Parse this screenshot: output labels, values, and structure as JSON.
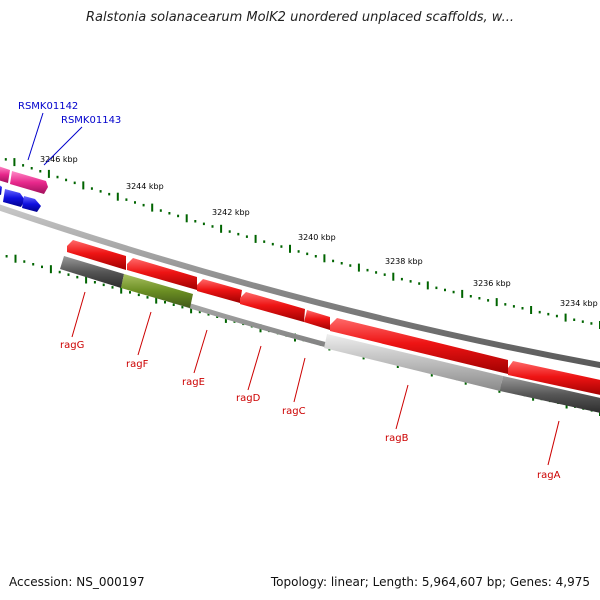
{
  "title": "Ralstonia solanacearum MolK2 unordered unplaced scaffolds, w...",
  "footer": {
    "accession": "Accession: NS_000197",
    "summary": "Topology: linear; Length: 5,964,607 bp; Genes: 4,975"
  },
  "scale_labels": [
    "3246 kbp",
    "3244 kbp",
    "3242 kbp",
    "3240 kbp",
    "3238 kbp",
    "3236 kbp",
    "3234 kbp"
  ],
  "gene_labels": [
    {
      "text": "RSMK01142",
      "color": "#0000cc"
    },
    {
      "text": "RSMK01143",
      "color": "#0000cc"
    },
    {
      "text": "ragG",
      "color": "#cc0000"
    },
    {
      "text": "ragF",
      "color": "#cc0000"
    },
    {
      "text": "ragE",
      "color": "#cc0000"
    },
    {
      "text": "ragD",
      "color": "#cc0000"
    },
    {
      "text": "ragC",
      "color": "#cc0000"
    },
    {
      "text": "ragB",
      "color": "#cc0000"
    },
    {
      "text": "ragA",
      "color": "#cc0000"
    }
  ],
  "colors": {
    "gene_red": "#e81010",
    "gene_pink": "#e8288c",
    "gene_blue": "#1010e0",
    "gene_olive": "#6b8e23",
    "gene_dark_gray": "#555555",
    "gene_light_gray": "#bbbbbb",
    "tick_green": "#006400",
    "backbone": "#888888"
  }
}
